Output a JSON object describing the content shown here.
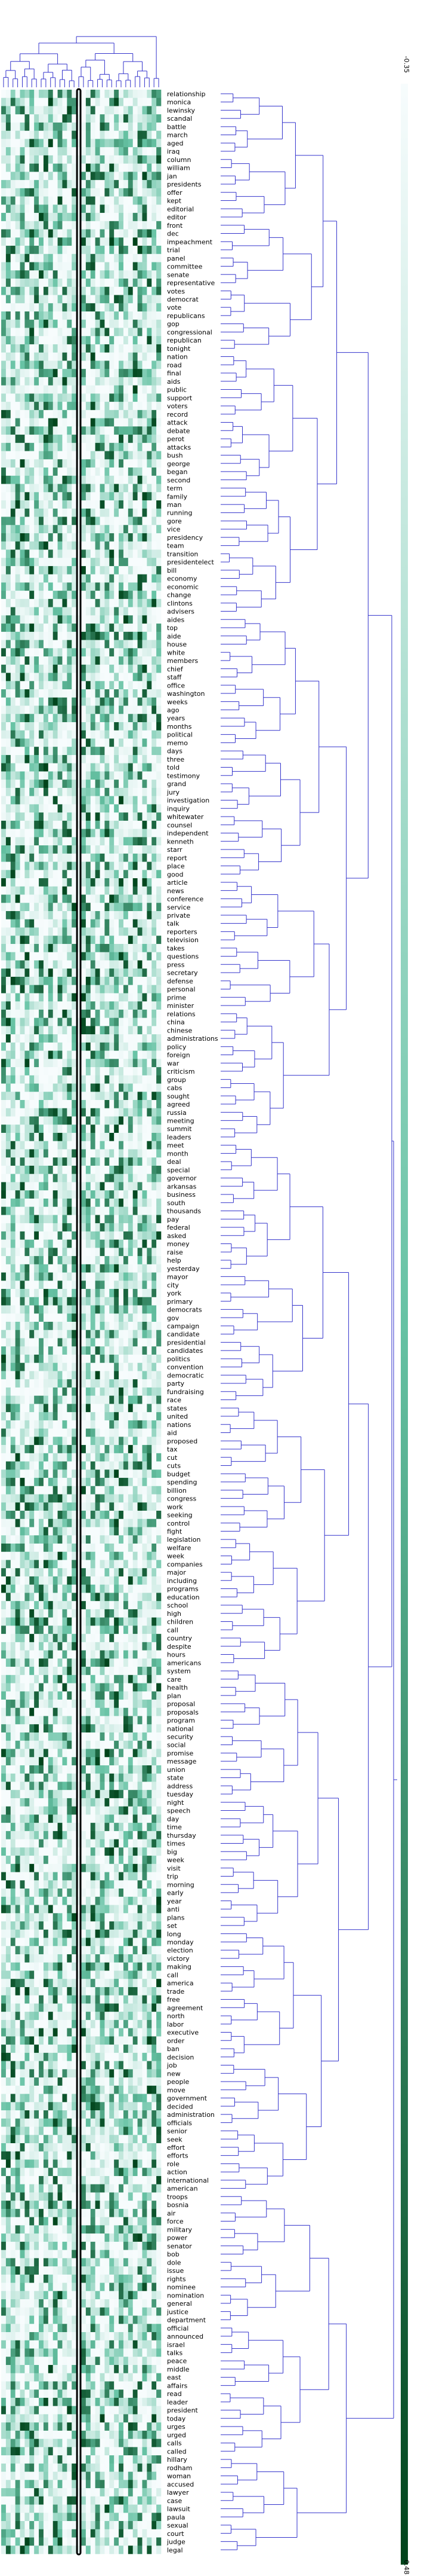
{
  "chart_data": {
    "type": "heatmap",
    "title": "",
    "xlabel": "",
    "ylabel": "",
    "colormap": "white-to-green",
    "colors": {
      "low": "#f7fcfd",
      "mid": "#66c2a4",
      "high": "#00441b",
      "dendrogram": "#3333cc",
      "highlight": "#000000"
    },
    "n_columns": 34,
    "highlighted_column_index": 16,
    "colorbar": {
      "min": -0.35,
      "max": 0.48,
      "min_label": "-0.35",
      "max_label": "0.48",
      "orientation": "vertical"
    },
    "row_labels": [
      "relationship",
      "monica",
      "lewinsky",
      "scandal",
      "battle",
      "march",
      "aged",
      "iraq",
      "column",
      "william",
      "jan",
      "presidents",
      "offer",
      "kept",
      "editorial",
      "editor",
      "front",
      "dec",
      "impeachment",
      "trial",
      "panel",
      "committee",
      "senate",
      "representative",
      "votes",
      "democrat",
      "vote",
      "republicans",
      "gop",
      "congressional",
      "republican",
      "tonight",
      "nation",
      "road",
      "final",
      "aids",
      "public",
      "support",
      "voters",
      "record",
      "attack",
      "debate",
      "perot",
      "attacks",
      "bush",
      "george",
      "began",
      "second",
      "term",
      "family",
      "man",
      "running",
      "gore",
      "vice",
      "presidency",
      "team",
      "transition",
      "presidentelect",
      "bill",
      "economy",
      "economic",
      "change",
      "clintons",
      "advisers",
      "aides",
      "top",
      "aide",
      "house",
      "white",
      "members",
      "chief",
      "staff",
      "office",
      "washington",
      "weeks",
      "ago",
      "years",
      "months",
      "political",
      "memo",
      "days",
      "three",
      "told",
      "testimony",
      "grand",
      "jury",
      "investigation",
      "inquiry",
      "whitewater",
      "counsel",
      "independent",
      "kenneth",
      "starr",
      "report",
      "place",
      "good",
      "article",
      "news",
      "conference",
      "service",
      "private",
      "talk",
      "reporters",
      "television",
      "takes",
      "questions",
      "press",
      "secretary",
      "defense",
      "personal",
      "prime",
      "minister",
      "relations",
      "china",
      "chinese",
      "administrations",
      "policy",
      "foreign",
      "war",
      "criticism",
      "group",
      "cabs",
      "sought",
      "agreed",
      "russia",
      "meeting",
      "summit",
      "leaders",
      "meet",
      "month",
      "deal",
      "special",
      "governor",
      "arkansas",
      "business",
      "south",
      "thousands",
      "pay",
      "federal",
      "asked",
      "money",
      "raise",
      "help",
      "yesterday",
      "mayor",
      "city",
      "york",
      "primary",
      "democrats",
      "gov",
      "campaign",
      "candidate",
      "presidential",
      "candidates",
      "politics",
      "convention",
      "democratic",
      "party",
      "fundraising",
      "race",
      "states",
      "united",
      "nations",
      "aid",
      "proposed",
      "tax",
      "cut",
      "cuts",
      "budget",
      "spending",
      "billion",
      "congress",
      "work",
      "seeking",
      "control",
      "fight",
      "legislation",
      "welfare",
      "week",
      "companies",
      "major",
      "including",
      "programs",
      "education",
      "school",
      "high",
      "children",
      "call",
      "country",
      "despite",
      "hours",
      "americans",
      "system",
      "care",
      "health",
      "plan",
      "proposal",
      "proposals",
      "program",
      "national",
      "security",
      "social",
      "promise",
      "message",
      "union",
      "state",
      "address",
      "tuesday",
      "night",
      "speech",
      "day",
      "time",
      "thursday",
      "times",
      "big",
      "week",
      "visit",
      "trip",
      "morning",
      "early",
      "year",
      "anti",
      "plans",
      "set",
      "long",
      "monday",
      "election",
      "victory",
      "making",
      "call",
      "america",
      "trade",
      "free",
      "agreement",
      "north",
      "labor",
      "executive",
      "order",
      "ban",
      "decision",
      "job",
      "new",
      "people",
      "move",
      "government",
      "decided",
      "administration",
      "officials",
      "senior",
      "seek",
      "effort",
      "efforts",
      "role",
      "action",
      "international",
      "american",
      "troops",
      "bosnia",
      "air",
      "force",
      "military",
      "power",
      "senator",
      "bob",
      "dole",
      "issue",
      "rights",
      "nominee",
      "nomination",
      "general",
      "justice",
      "department",
      "official",
      "announced",
      "israel",
      "talks",
      "peace",
      "middle",
      "east",
      "affairs",
      "read",
      "leader",
      "president",
      "today",
      "urges",
      "urged",
      "calls",
      "called",
      "hillary",
      "rodham",
      "woman",
      "accused",
      "lawyer",
      "case",
      "lawsuit",
      "paula",
      "sexual",
      "court",
      "judge",
      "legal"
    ]
  }
}
